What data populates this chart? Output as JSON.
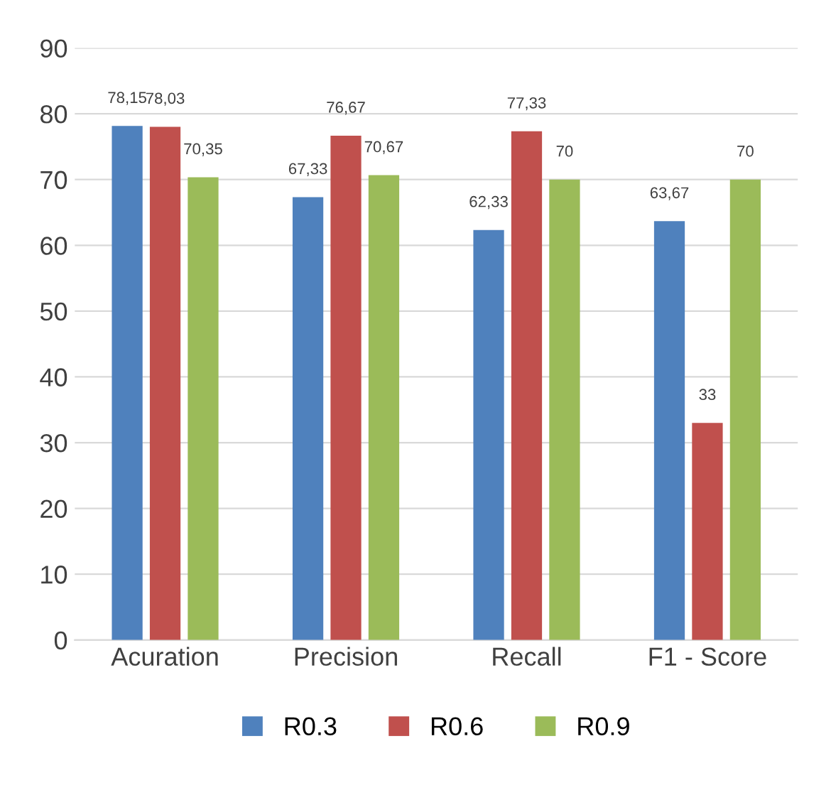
{
  "chart_data": {
    "type": "bar",
    "categories": [
      "Acuration",
      "Precision",
      "Recall",
      "F1 - Score"
    ],
    "series": [
      {
        "name": "R0.3",
        "color": "#4f81bd",
        "values": [
          78.15,
          67.33,
          62.33,
          63.67
        ],
        "value_labels": [
          "78,15",
          "67,33",
          "62,33",
          "63,67"
        ]
      },
      {
        "name": "R0.6",
        "color": "#c0504d",
        "values": [
          78.03,
          76.67,
          77.33,
          33
        ],
        "value_labels": [
          "78,03",
          "76,67",
          "77,33",
          "33"
        ]
      },
      {
        "name": "R0.9",
        "color": "#9bbb59",
        "values": [
          70.35,
          70.67,
          70,
          70
        ],
        "value_labels": [
          "70,35",
          "70,67",
          "70",
          "70"
        ]
      }
    ],
    "ylim": [
      0,
      90
    ],
    "yticks": [
      0,
      10,
      20,
      30,
      40,
      50,
      60,
      70,
      80,
      90
    ],
    "grid": "y",
    "legend": "bottom"
  }
}
